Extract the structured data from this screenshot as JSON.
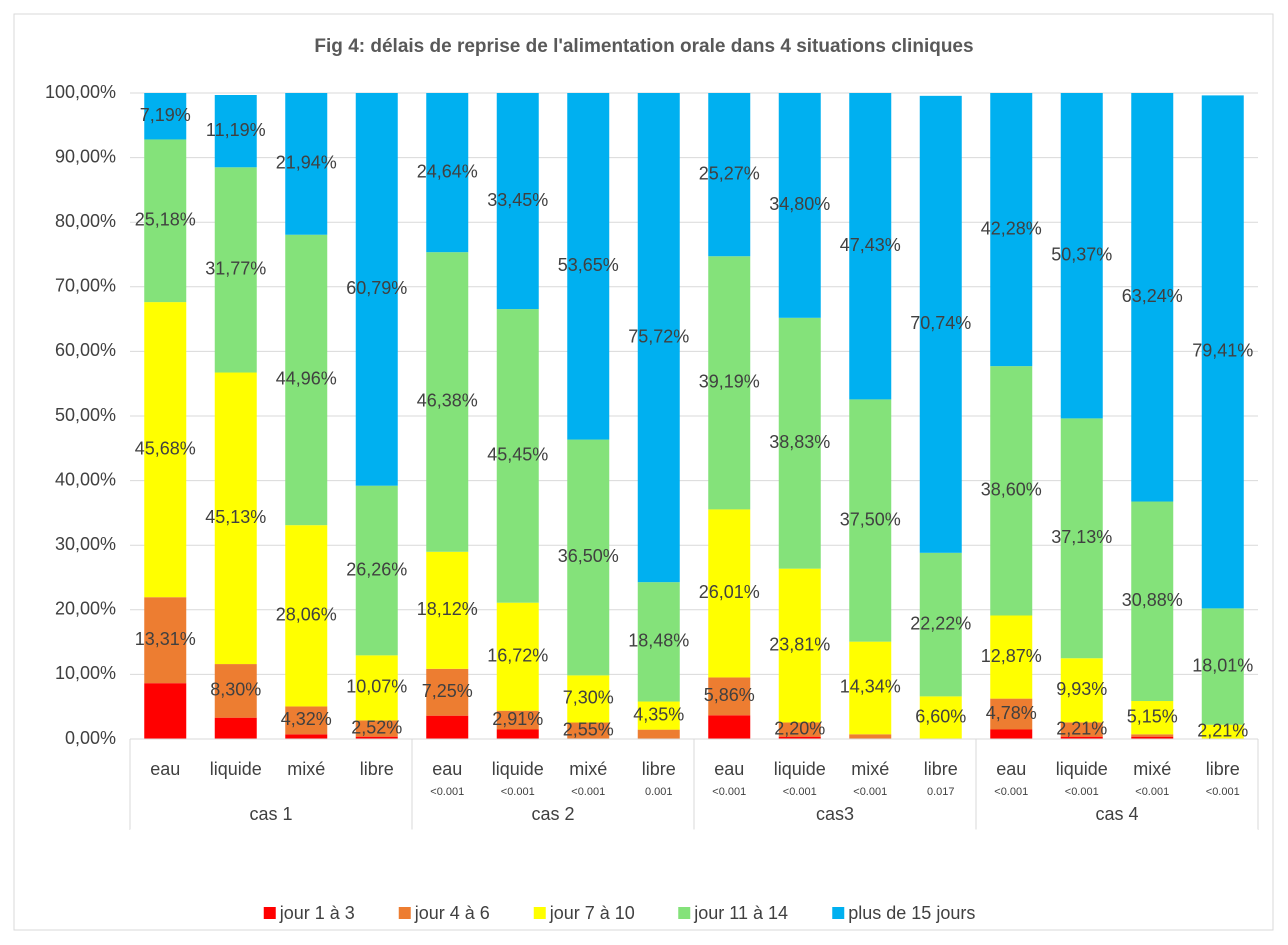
{
  "chart_data": {
    "type": "stacked_bar",
    "title": "Fig 4: délais de reprise de l'alimentation orale dans 4 situations cliniques",
    "categories": [
      "eau",
      "liquide",
      "mixé",
      "libre",
      "eau",
      "liquide",
      "mixé",
      "libre",
      "eau",
      "liquide",
      "mixé",
      "libre",
      "eau",
      "liquide",
      "mixé",
      "libre"
    ],
    "pvalues": [
      null,
      null,
      null,
      null,
      "<0.001",
      "<0.001",
      "<0.001",
      "0.001",
      "<0.001",
      "<0.001",
      "<0.001",
      "0.017",
      "<0.001",
      "<0.001",
      "<0.001",
      "<0.001"
    ],
    "groups": [
      "cas 1",
      "cas 2",
      "cas3",
      "cas 4"
    ],
    "ylim": [
      0,
      100
    ],
    "yticks": [
      {
        "value": 0,
        "label": "0,00%"
      },
      {
        "value": 10,
        "label": "10,00%"
      },
      {
        "value": 20,
        "label": "20,00%"
      },
      {
        "value": 30,
        "label": "30,00%"
      },
      {
        "value": 40,
        "label": "40,00%"
      },
      {
        "value": 50,
        "label": "50,00%"
      },
      {
        "value": 60,
        "label": "60,00%"
      },
      {
        "value": 70,
        "label": "70,00%"
      },
      {
        "value": 80,
        "label": "80,00%"
      },
      {
        "value": 90,
        "label": "90,00%"
      },
      {
        "value": 100,
        "label": "100,00%"
      }
    ],
    "grid": true,
    "legend": "bottom",
    "series": [
      {
        "name": "jour 1 à 3",
        "color": "#ff0000",
        "values": [
          8.64,
          3.3,
          0.72,
          0.36,
          3.61,
          1.47,
          0,
          0,
          3.67,
          0.36,
          0,
          0,
          1.47,
          0.36,
          0.36,
          0
        ]
      },
      {
        "name": "jour 4 à 6",
        "color": "#ed7d31",
        "values": [
          13.31,
          8.3,
          4.32,
          2.52,
          7.25,
          2.91,
          2.55,
          1.45,
          5.86,
          2.2,
          0.73,
          0,
          4.78,
          2.21,
          0.37,
          0
        ],
        "value_labels": [
          "13,31%",
          "8,30%",
          "4,32%",
          "2,52%",
          "7,25%",
          "2,91%",
          "2,55%",
          null,
          "5,86%",
          "2,20%",
          null,
          null,
          "4,78%",
          "2,21%",
          null,
          null
        ]
      },
      {
        "name": "jour 7 à 10",
        "color": "#ffff00",
        "values": [
          45.68,
          45.13,
          28.06,
          10.07,
          18.12,
          16.72,
          7.3,
          4.35,
          26.01,
          23.81,
          14.34,
          6.6,
          12.87,
          9.93,
          5.15,
          2.21
        ],
        "value_labels": [
          "45,68%",
          "45,13%",
          "28,06%",
          "10,07%",
          "18,12%",
          "16,72%",
          "7,30%",
          "4,35%",
          "26,01%",
          "23,81%",
          "14,34%",
          "6,60%",
          "12,87%",
          "9,93%",
          "5,15%",
          "2,21%"
        ]
      },
      {
        "name": "jour 11 à 14",
        "color": "#84e27a",
        "values": [
          25.18,
          31.77,
          44.96,
          26.26,
          46.38,
          45.45,
          36.5,
          18.48,
          39.19,
          38.83,
          37.5,
          22.22,
          38.6,
          37.13,
          30.88,
          18.01
        ],
        "value_labels": [
          "25,18%",
          "31,77%",
          "44,96%",
          "26,26%",
          "46,38%",
          "45,45%",
          "36,50%",
          "18,48%",
          "39,19%",
          "38,83%",
          "37,50%",
          "22,22%",
          "38,60%",
          "37,13%",
          "30,88%",
          "18,01%"
        ]
      },
      {
        "name": "plus de 15 jours",
        "color": "#00b0f0",
        "values": [
          7.19,
          11.19,
          21.94,
          60.79,
          24.64,
          33.45,
          53.65,
          75.72,
          25.27,
          34.8,
          47.43,
          70.74,
          42.28,
          50.37,
          63.24,
          79.41
        ],
        "value_labels": [
          "7,19%",
          "11,19%",
          "21,94%",
          "60,79%",
          "24,64%",
          "33,45%",
          "53,65%",
          "75,72%",
          "25,27%",
          "34,80%",
          "47,43%",
          "70,74%",
          "42,28%",
          "50,37%",
          "63,24%",
          "79,41%"
        ]
      }
    ]
  }
}
